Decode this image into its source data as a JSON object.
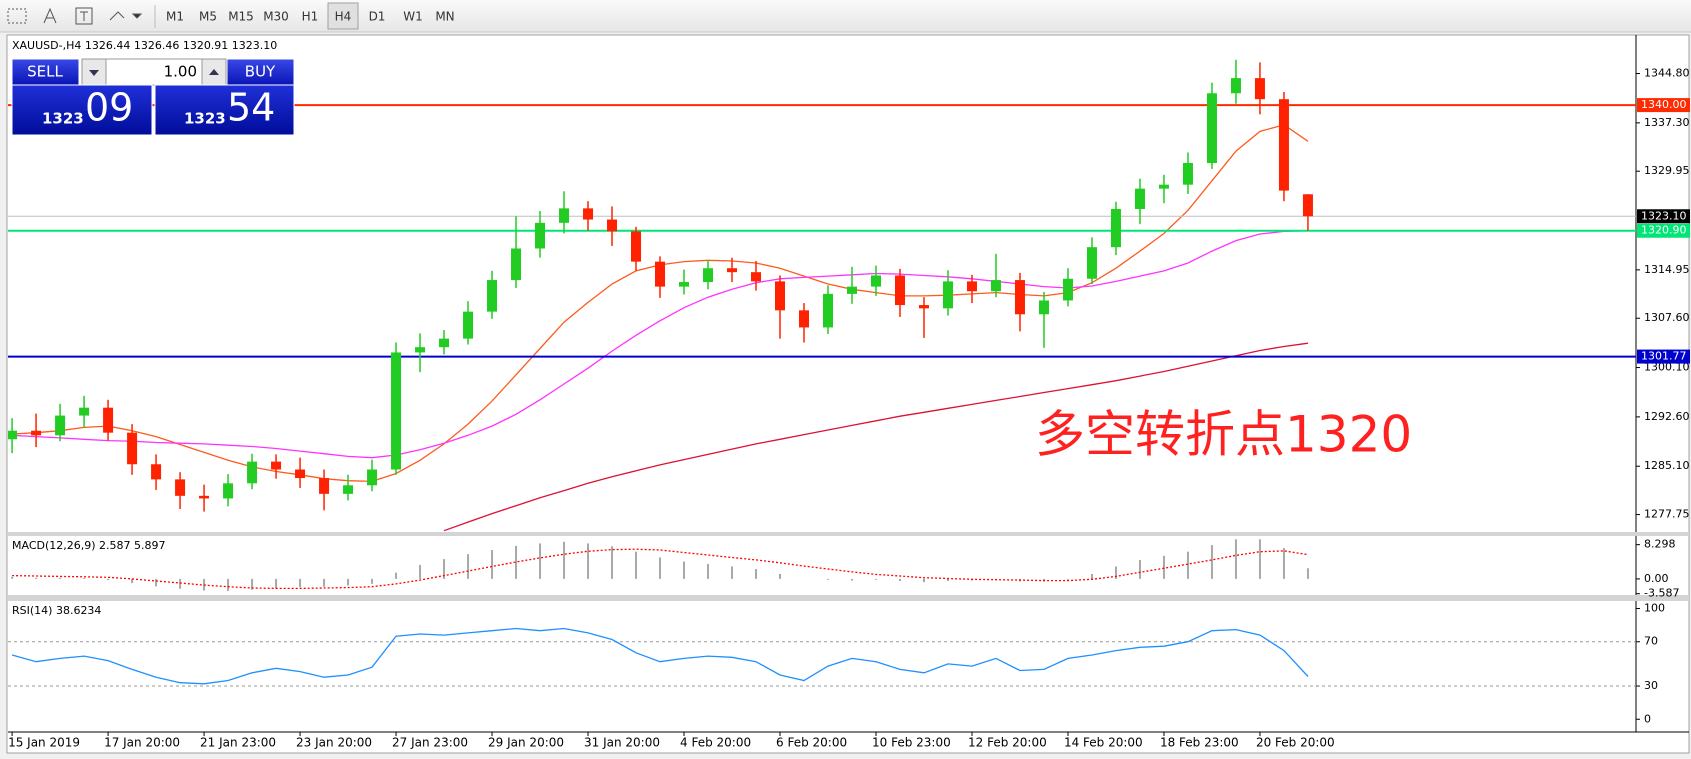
{
  "toolbar": {
    "buttons": [
      "M1",
      "M5",
      "M15",
      "M30",
      "H1",
      "H4",
      "D1",
      "W1",
      "MN"
    ],
    "active": "H4"
  },
  "trade_panel": {
    "sell": "SELL",
    "buy": "BUY",
    "lot": "1.00",
    "bid_big": "1323",
    "bid_small": "09",
    "ask_big": "1323",
    "ask_small": "54"
  },
  "chart_data": [
    {
      "type": "candlestick",
      "title": "XAUUSD-,H4  1326.44 1326.46 1320.91 1323.10",
      "xlim": [
        -0.17,
        67.67
      ],
      "xticks": [
        {
          "value": 0,
          "label": "15 Jan 2019"
        },
        {
          "value": 4,
          "label": "17 Jan 20:00"
        },
        {
          "value": 8,
          "label": "21 Jan 23:00"
        },
        {
          "value": 12,
          "label": "23 Jan 20:00"
        },
        {
          "value": 16,
          "label": "27 Jan 23:00"
        },
        {
          "value": 20,
          "label": "29 Jan 20:00"
        },
        {
          "value": 24,
          "label": "31 Jan 20:00"
        },
        {
          "value": 28,
          "label": "4 Feb 20:00"
        },
        {
          "value": 32,
          "label": "6 Feb 20:00"
        },
        {
          "value": 36,
          "label": "10 Feb 23:00"
        },
        {
          "value": 40,
          "label": "12 Feb 20:00"
        },
        {
          "value": 44,
          "label": "14 Feb 20:00"
        },
        {
          "value": 48,
          "label": "18 Feb 23:00"
        },
        {
          "value": 52,
          "label": "20 Feb 20:00"
        }
      ],
      "ylim": [
        1275.1,
        1350.2
      ],
      "yticks": [
        {
          "value": 1344.8,
          "label": "1344.80"
        },
        {
          "value": 1337.3,
          "label": "1337.30"
        },
        1329.95,
        1314.95,
        {
          "value": 1307.6,
          "label": "1307.60"
        },
        {
          "value": 1300.1,
          "label": "1300.10"
        },
        {
          "value": 1292.6,
          "label": "1292.60"
        },
        {
          "value": 1285.1,
          "label": "1285.10"
        },
        1277.75
      ],
      "grid": false,
      "up_color": "#22cc22",
      "down_color": "#ff2200",
      "open": [
        1289.2,
        1290.5,
        1289.8,
        1292.8,
        1294.0,
        1290.2,
        1285.4,
        1283.1,
        1280.6,
        1280.2,
        1282.5,
        1285.8,
        1284.6,
        1283.3,
        1280.9,
        1282.2,
        1284.6,
        1302.4,
        1303.2,
        1304.5,
        1308.6,
        1313.4,
        1318.2,
        1322.1,
        1324.3,
        1322.6,
        1320.8,
        1316.2,
        1312.4,
        1313.1,
        1315.2,
        1314.6,
        1313.2,
        1308.8,
        1306.2,
        1311.3,
        1312.4,
        1314.1,
        1309.6,
        1309.1,
        1313.2,
        1311.7,
        1313.4,
        1308.2,
        1310.3,
        1313.6,
        1318.4,
        1324.2,
        1327.3,
        1327.9,
        1331.2,
        1341.8,
        1344.1,
        1340.9,
        1326.44
      ],
      "high": [
        1292.4,
        1293.1,
        1294.6,
        1295.8,
        1295.2,
        1291.5,
        1286.9,
        1284.2,
        1282.3,
        1283.9,
        1287.0,
        1286.9,
        1286.4,
        1284.6,
        1283.8,
        1286.1,
        1303.9,
        1305.3,
        1305.8,
        1310.2,
        1314.8,
        1323.1,
        1323.9,
        1326.9,
        1325.4,
        1324.6,
        1321.5,
        1317.0,
        1315.0,
        1316.4,
        1316.8,
        1316.3,
        1314.1,
        1309.9,
        1312.6,
        1315.4,
        1315.6,
        1315.1,
        1310.8,
        1314.9,
        1314.2,
        1317.4,
        1314.5,
        1311.6,
        1315.2,
        1319.9,
        1325.3,
        1328.8,
        1329.4,
        1332.8,
        1343.4,
        1346.9,
        1346.5,
        1342.0,
        1326.46
      ],
      "low": [
        1287.1,
        1288.0,
        1288.9,
        1291.0,
        1289.0,
        1283.8,
        1281.5,
        1278.6,
        1278.2,
        1279.0,
        1281.6,
        1283.2,
        1281.8,
        1278.4,
        1279.9,
        1281.3,
        1283.8,
        1299.4,
        1302.1,
        1303.6,
        1307.5,
        1312.2,
        1316.8,
        1320.5,
        1320.9,
        1318.6,
        1314.8,
        1310.7,
        1311.2,
        1312.0,
        1313.1,
        1311.8,
        1304.5,
        1303.9,
        1305.2,
        1309.8,
        1311.0,
        1307.8,
        1304.6,
        1308.0,
        1309.9,
        1310.8,
        1305.6,
        1303.1,
        1309.4,
        1312.8,
        1317.2,
        1321.9,
        1325.1,
        1326.5,
        1330.3,
        1340.2,
        1338.6,
        1325.4,
        1320.91
      ],
      "close": [
        1290.5,
        1289.8,
        1292.8,
        1294.0,
        1290.2,
        1285.4,
        1283.1,
        1280.6,
        1280.2,
        1282.5,
        1285.8,
        1284.6,
        1283.3,
        1280.9,
        1282.2,
        1284.6,
        1302.4,
        1303.2,
        1304.5,
        1308.6,
        1313.4,
        1318.2,
        1322.1,
        1324.3,
        1322.6,
        1320.8,
        1316.2,
        1312.4,
        1313.1,
        1315.2,
        1314.6,
        1313.2,
        1308.8,
        1306.2,
        1311.3,
        1312.4,
        1314.1,
        1309.6,
        1309.1,
        1313.2,
        1311.7,
        1313.4,
        1308.2,
        1310.3,
        1313.6,
        1318.4,
        1324.2,
        1327.3,
        1327.9,
        1331.2,
        1341.8,
        1344.1,
        1340.9,
        1327.0,
        1323.1
      ],
      "series": [
        {
          "color": "#ff5a1e",
          "values": [
            1290.0,
            1290.2,
            1290.5,
            1291.0,
            1291.2,
            1290.5,
            1289.6,
            1288.4,
            1287.2,
            1286.0,
            1285.0,
            1284.3,
            1283.8,
            1283.2,
            1282.9,
            1282.8,
            1284.0,
            1286.0,
            1288.5,
            1291.5,
            1295.0,
            1299.0,
            1303.0,
            1307.0,
            1310.0,
            1312.8,
            1314.8,
            1315.7,
            1316.2,
            1316.4,
            1316.3,
            1316.0,
            1315.2,
            1314.0,
            1312.8,
            1312.0,
            1311.5,
            1311.0,
            1311.0,
            1311.1,
            1311.3,
            1311.5,
            1311.2,
            1311.0,
            1311.5,
            1313.0,
            1315.2,
            1317.8,
            1320.5,
            1324.0,
            1328.5,
            1333.0,
            1336.0,
            1337.0,
            1334.5
          ]
        },
        {
          "color": "#ff33ff",
          "values": [
            1289.8,
            1289.6,
            1289.4,
            1289.2,
            1289.0,
            1288.9,
            1288.7,
            1288.6,
            1288.5,
            1288.3,
            1288.1,
            1287.8,
            1287.4,
            1287.0,
            1286.6,
            1286.4,
            1286.8,
            1287.6,
            1288.6,
            1289.8,
            1291.2,
            1293.0,
            1295.2,
            1297.6,
            1300.0,
            1302.6,
            1305.0,
            1307.2,
            1309.2,
            1310.8,
            1312.0,
            1313.0,
            1313.6,
            1313.8,
            1314.0,
            1314.2,
            1314.4,
            1314.3,
            1314.1,
            1313.9,
            1313.6,
            1313.2,
            1312.8,
            1312.4,
            1312.2,
            1312.5,
            1313.2,
            1314.0,
            1314.8,
            1316.0,
            1317.8,
            1319.4,
            1320.4,
            1320.8,
            1320.9
          ]
        },
        {
          "color": "#dd1133",
          "values": [
            null,
            null,
            null,
            null,
            null,
            null,
            null,
            null,
            null,
            null,
            null,
            null,
            null,
            null,
            null,
            null,
            null,
            null,
            1275.3,
            1276.6,
            1277.9,
            1279.1,
            1280.3,
            1281.4,
            1282.5,
            1283.5,
            1284.4,
            1285.3,
            1286.1,
            1286.9,
            1287.7,
            1288.5,
            1289.2,
            1289.9,
            1290.6,
            1291.3,
            1292.0,
            1292.7,
            1293.3,
            1293.9,
            1294.5,
            1295.1,
            1295.7,
            1296.3,
            1296.9,
            1297.5,
            1298.1,
            1298.8,
            1299.5,
            1300.3,
            1301.1,
            1301.9,
            1302.7,
            1303.3,
            1303.8
          ]
        }
      ],
      "hlines": [
        {
          "value": 1340,
          "label": "1340.00",
          "color": "#ff2a00"
        },
        {
          "value": 1323.1,
          "label": "1323.10",
          "color": "#c0c0c0",
          "label_color": "#000000"
        },
        {
          "value": 1320.9,
          "label": "1320.90",
          "color": "#00e676"
        },
        {
          "value": 1301.77,
          "label": "1301.77",
          "color": "#0000cc"
        }
      ],
      "annotation": {
        "text": "多空转折点1320",
        "color": "#ff2020"
      }
    },
    {
      "type": "macd",
      "title": "MACD(12,26,9) 2.587 5.897",
      "ylim": [
        -3.9,
        10.4
      ],
      "yticks": [
        8.298,
        {
          "value": 0,
          "label": "0.00"
        },
        -3.587
      ],
      "histogram": {
        "color": "#a8a8a8",
        "values": [
          0.5,
          0.3,
          0.3,
          0.2,
          -0.3,
          -1.0,
          -1.8,
          -2.4,
          -2.8,
          -2.9,
          -2.6,
          -2.3,
          -2.0,
          -1.9,
          -1.6,
          -1.2,
          1.5,
          3.4,
          4.8,
          6.0,
          7.0,
          8.0,
          8.6,
          9.0,
          8.6,
          7.9,
          6.6,
          5.2,
          4.2,
          3.6,
          3.0,
          2.4,
          1.2,
          0.0,
          -0.2,
          -0.4,
          -0.2,
          -0.5,
          -0.8,
          -0.5,
          -0.4,
          -0.2,
          -0.6,
          -0.6,
          -0.2,
          1.2,
          3.0,
          4.6,
          5.6,
          6.6,
          8.2,
          9.6,
          9.6,
          7.5,
          2.587
        ]
      },
      "signal": {
        "color": "#ff0000",
        "values": [
          0.8,
          0.7,
          0.6,
          0.5,
          0.4,
          0.0,
          -0.5,
          -1.0,
          -1.5,
          -1.9,
          -2.2,
          -2.3,
          -2.3,
          -2.2,
          -2.1,
          -1.9,
          -1.2,
          -0.3,
          0.8,
          1.9,
          3.0,
          4.1,
          5.1,
          6.0,
          6.7,
          7.1,
          7.2,
          7.0,
          6.4,
          5.8,
          5.2,
          4.6,
          3.9,
          3.1,
          2.4,
          1.7,
          1.1,
          0.7,
          0.3,
          0.1,
          -0.1,
          -0.2,
          -0.3,
          -0.4,
          -0.4,
          -0.1,
          0.6,
          1.6,
          2.6,
          3.6,
          4.6,
          5.7,
          6.6,
          6.8,
          5.897
        ]
      }
    },
    {
      "type": "line",
      "title": "RSI(14) 38.6234",
      "ylim": [
        -9.7,
        106.8
      ],
      "yticks": [
        100,
        70,
        30,
        0
      ],
      "levels": [
        70,
        30
      ],
      "series": [
        {
          "color": "#1e90ff",
          "values": [
            58,
            52,
            55,
            57,
            53,
            45,
            38,
            33,
            32,
            35,
            42,
            46,
            43,
            38,
            40,
            47,
            75,
            77,
            76,
            78,
            80,
            82,
            80,
            82,
            78,
            72,
            60,
            52,
            55,
            57,
            56,
            52,
            40,
            35,
            48,
            55,
            52,
            45,
            42,
            50,
            48,
            55,
            44,
            45,
            55,
            58,
            62,
            65,
            66,
            70,
            80,
            81,
            76,
            62,
            38.6234
          ]
        }
      ]
    }
  ]
}
